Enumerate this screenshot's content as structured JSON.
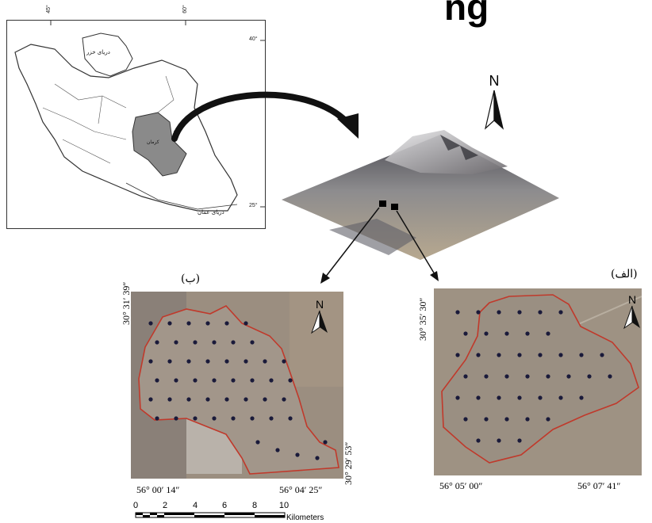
{
  "header_fragment": "ng",
  "iran_inset": {
    "lon_ticks": [
      "45°",
      "60°"
    ],
    "lat_ticks": [
      "40°",
      "25°"
    ],
    "caspian_label": "دریای خزر",
    "oman_label": "دریای عمان",
    "province_label": "کرمان",
    "colors": {
      "province": "#8a8a8a",
      "outline": "#333333"
    }
  },
  "terrain_north": "N",
  "panel_b": {
    "label": "(ب)",
    "north": "N",
    "lat_top": "30° 31′ 39″",
    "lat_bottom": "30° 29′ 53″",
    "lon_left": "56° 00′ 14″",
    "lon_right": "56° 04′ 25″"
  },
  "panel_alef": {
    "label": "(الف)",
    "north": "N",
    "lat_top": "30° 35′ 30″",
    "lon_left": "56° 05′ 00″",
    "lon_right": "56° 07′ 41″"
  },
  "scale_bar": {
    "ticks": [
      "0",
      "2",
      "4",
      "6",
      "8",
      "10"
    ],
    "unit": "Kilometers"
  },
  "colors": {
    "boundary": "#c0392b",
    "well_dot": "#1a1a3a",
    "arrow": "#111111"
  }
}
